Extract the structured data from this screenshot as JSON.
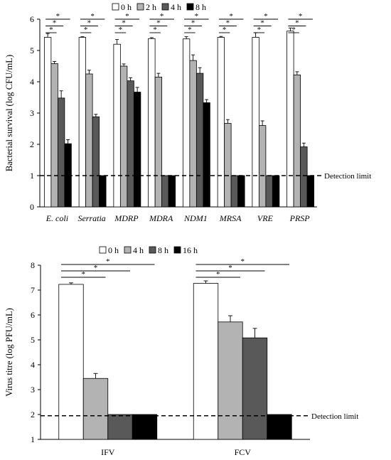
{
  "chart_data": [
    {
      "type": "bar",
      "ylabel": "Bacterial survival (log CFU/mL)",
      "ylim": [
        0,
        6
      ],
      "yticks": [
        "0",
        "1",
        "2",
        "3",
        "4",
        "5",
        "6"
      ],
      "categories": [
        "E. coli",
        "Serratia",
        "MDRP",
        "MDRA",
        "NDM1",
        "MRSA",
        "VRE",
        "PRSP"
      ],
      "italic_categories": true,
      "series": [
        {
          "name": "0 h",
          "color": "#ffffff",
          "values": [
            5.42,
            5.42,
            5.2,
            5.38,
            5.37,
            5.42,
            5.42,
            5.62
          ],
          "errors": [
            0.12,
            0.02,
            0.15,
            0.03,
            0.07,
            0.03,
            0.15,
            0.1
          ]
        },
        {
          "name": "2 h",
          "color": "#b3b3b3",
          "values": [
            4.58,
            4.25,
            4.5,
            4.15,
            4.68,
            2.67,
            2.6,
            4.22
          ]
        },
        {
          "name": "4 h",
          "color": "#595959",
          "values": [
            3.48,
            2.88,
            4.03,
            1.0,
            4.27,
            1.0,
            1.0,
            1.92
          ]
        },
        {
          "name": "8 h",
          "color": "#000000",
          "values": [
            2.02,
            1.0,
            3.67,
            1.0,
            3.33,
            1.0,
            1.0,
            1.0
          ]
        }
      ],
      "errors_2h": [
        0.07,
        0.12,
        0.07,
        0.12,
        0.18,
        0.12,
        0.15,
        0.1
      ],
      "errors_4h": [
        0.23,
        0.08,
        0.1,
        0,
        0.18,
        0,
        0,
        0.12
      ],
      "errors_8h": [
        0.13,
        0,
        0.15,
        0,
        0.1,
        0,
        0,
        0
      ],
      "detection_limit": 1,
      "detection_label": "Detection limit",
      "significance_marker": "*",
      "significance_per_category": 3
    },
    {
      "type": "bar",
      "ylabel": "Virus titre (log PFU/mL)",
      "ylim": [
        1,
        8
      ],
      "yticks": [
        "1",
        "2",
        "3",
        "4",
        "5",
        "6",
        "7",
        "8"
      ],
      "categories": [
        "IFV",
        "FCV"
      ],
      "italic_categories": false,
      "series": [
        {
          "name": "0 h",
          "color": "#ffffff",
          "values": [
            7.23,
            7.27
          ]
        },
        {
          "name": "4 h",
          "color": "#b3b3b3",
          "values": [
            3.45,
            5.72
          ]
        },
        {
          "name": "8 h",
          "color": "#595959",
          "values": [
            2.0,
            5.08
          ]
        },
        {
          "name": "16 h",
          "color": "#000000",
          "values": [
            2.0,
            2.0
          ]
        }
      ],
      "errors_0h": [
        0.06,
        0.1
      ],
      "errors_4h": [
        0.2,
        0.25
      ],
      "errors_8h": [
        0,
        0.38
      ],
      "errors_16h": [
        0,
        0
      ],
      "detection_limit": 1.95,
      "detection_label": "Detection limit",
      "significance_marker": "*",
      "significance_per_category": 3
    }
  ]
}
